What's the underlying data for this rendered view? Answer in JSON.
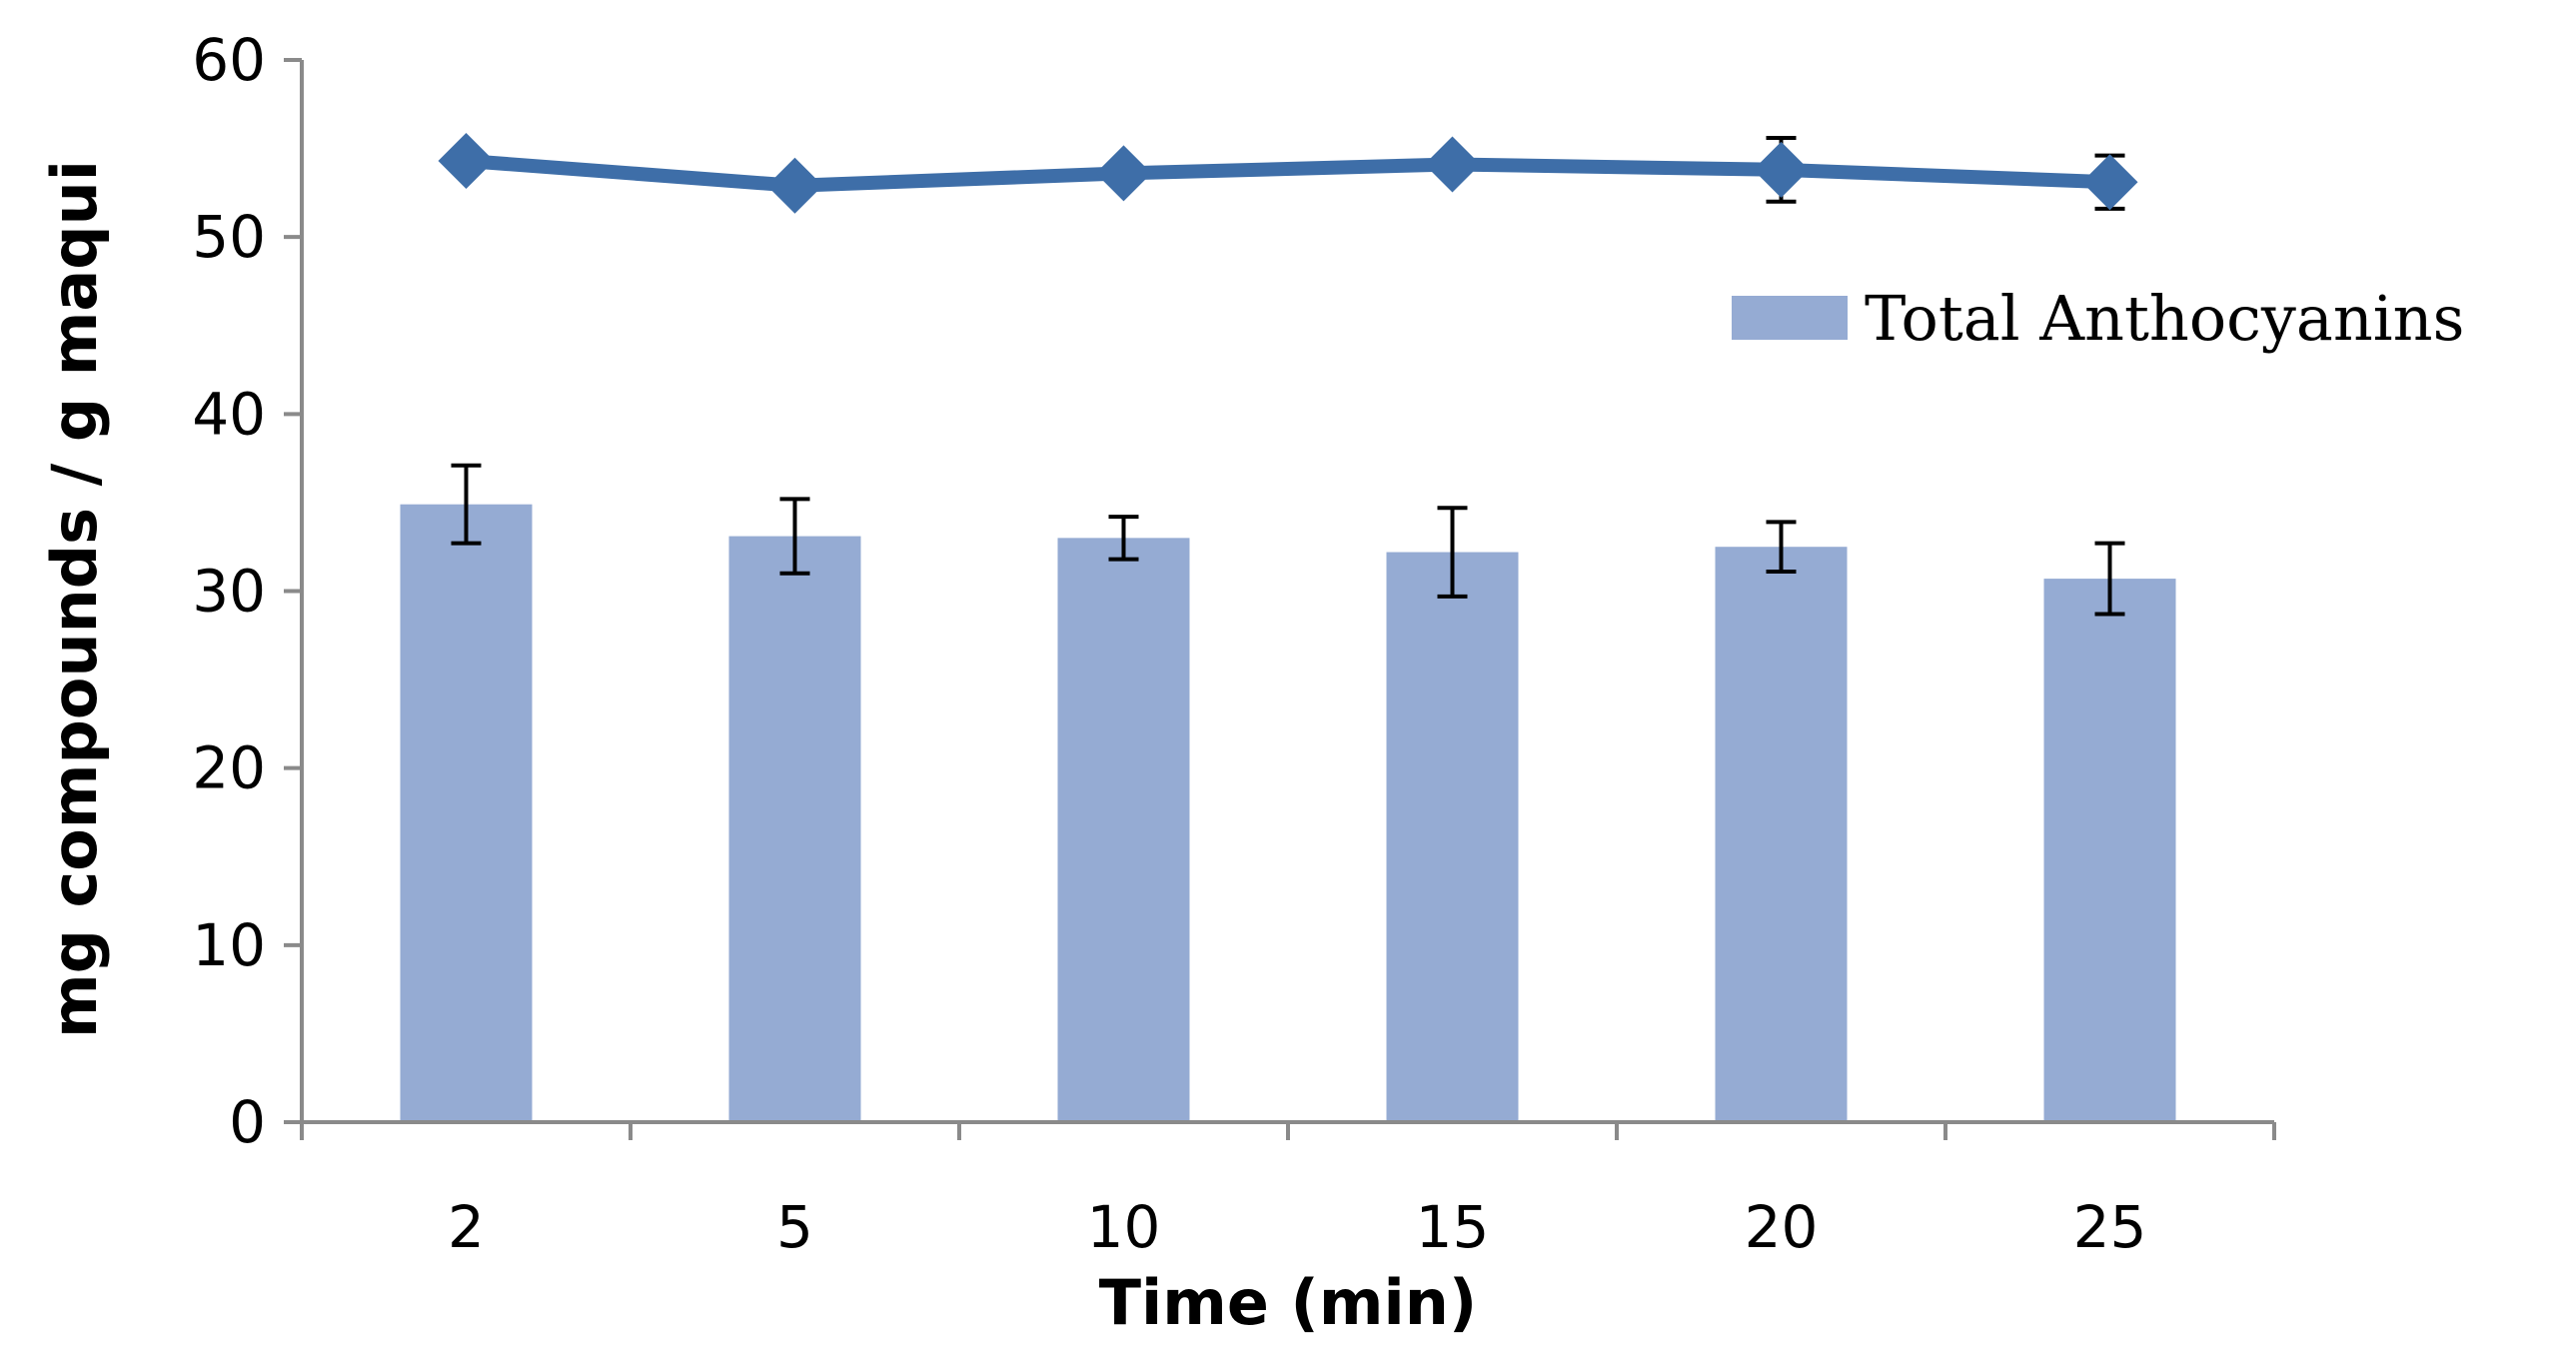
{
  "chart_data": {
    "type": "bar+line",
    "title": "",
    "xlabel": "Time (min)",
    "ylabel": "mg compounds / g maqui",
    "ylim": [
      0,
      60
    ],
    "yticks": [
      0,
      10,
      20,
      30,
      40,
      50,
      60
    ],
    "yticks_text": [
      "0",
      "10",
      "20",
      "30",
      "40",
      "50",
      "60"
    ],
    "categories": [
      "2",
      "5",
      "10",
      "15",
      "20",
      "25"
    ],
    "grid": false,
    "series": [
      {
        "name": "Total Anthocyanins",
        "kind": "bar",
        "color": "#95abd3",
        "values": [
          34.9,
          33.1,
          33.0,
          32.2,
          32.5,
          30.7
        ],
        "errors": [
          2.2,
          2.1,
          1.2,
          2.5,
          1.4,
          2.0
        ]
      },
      {
        "name": "",
        "kind": "line",
        "marker": "diamond",
        "color": "#3e6ea8",
        "values": [
          54.3,
          52.9,
          53.6,
          54.1,
          53.8,
          53.1
        ],
        "errors": [
          0.5,
          0.4,
          0.6,
          0.4,
          1.8,
          1.5
        ]
      }
    ],
    "legend": {
      "position": "right",
      "label": "Total Anthocyanins"
    }
  }
}
